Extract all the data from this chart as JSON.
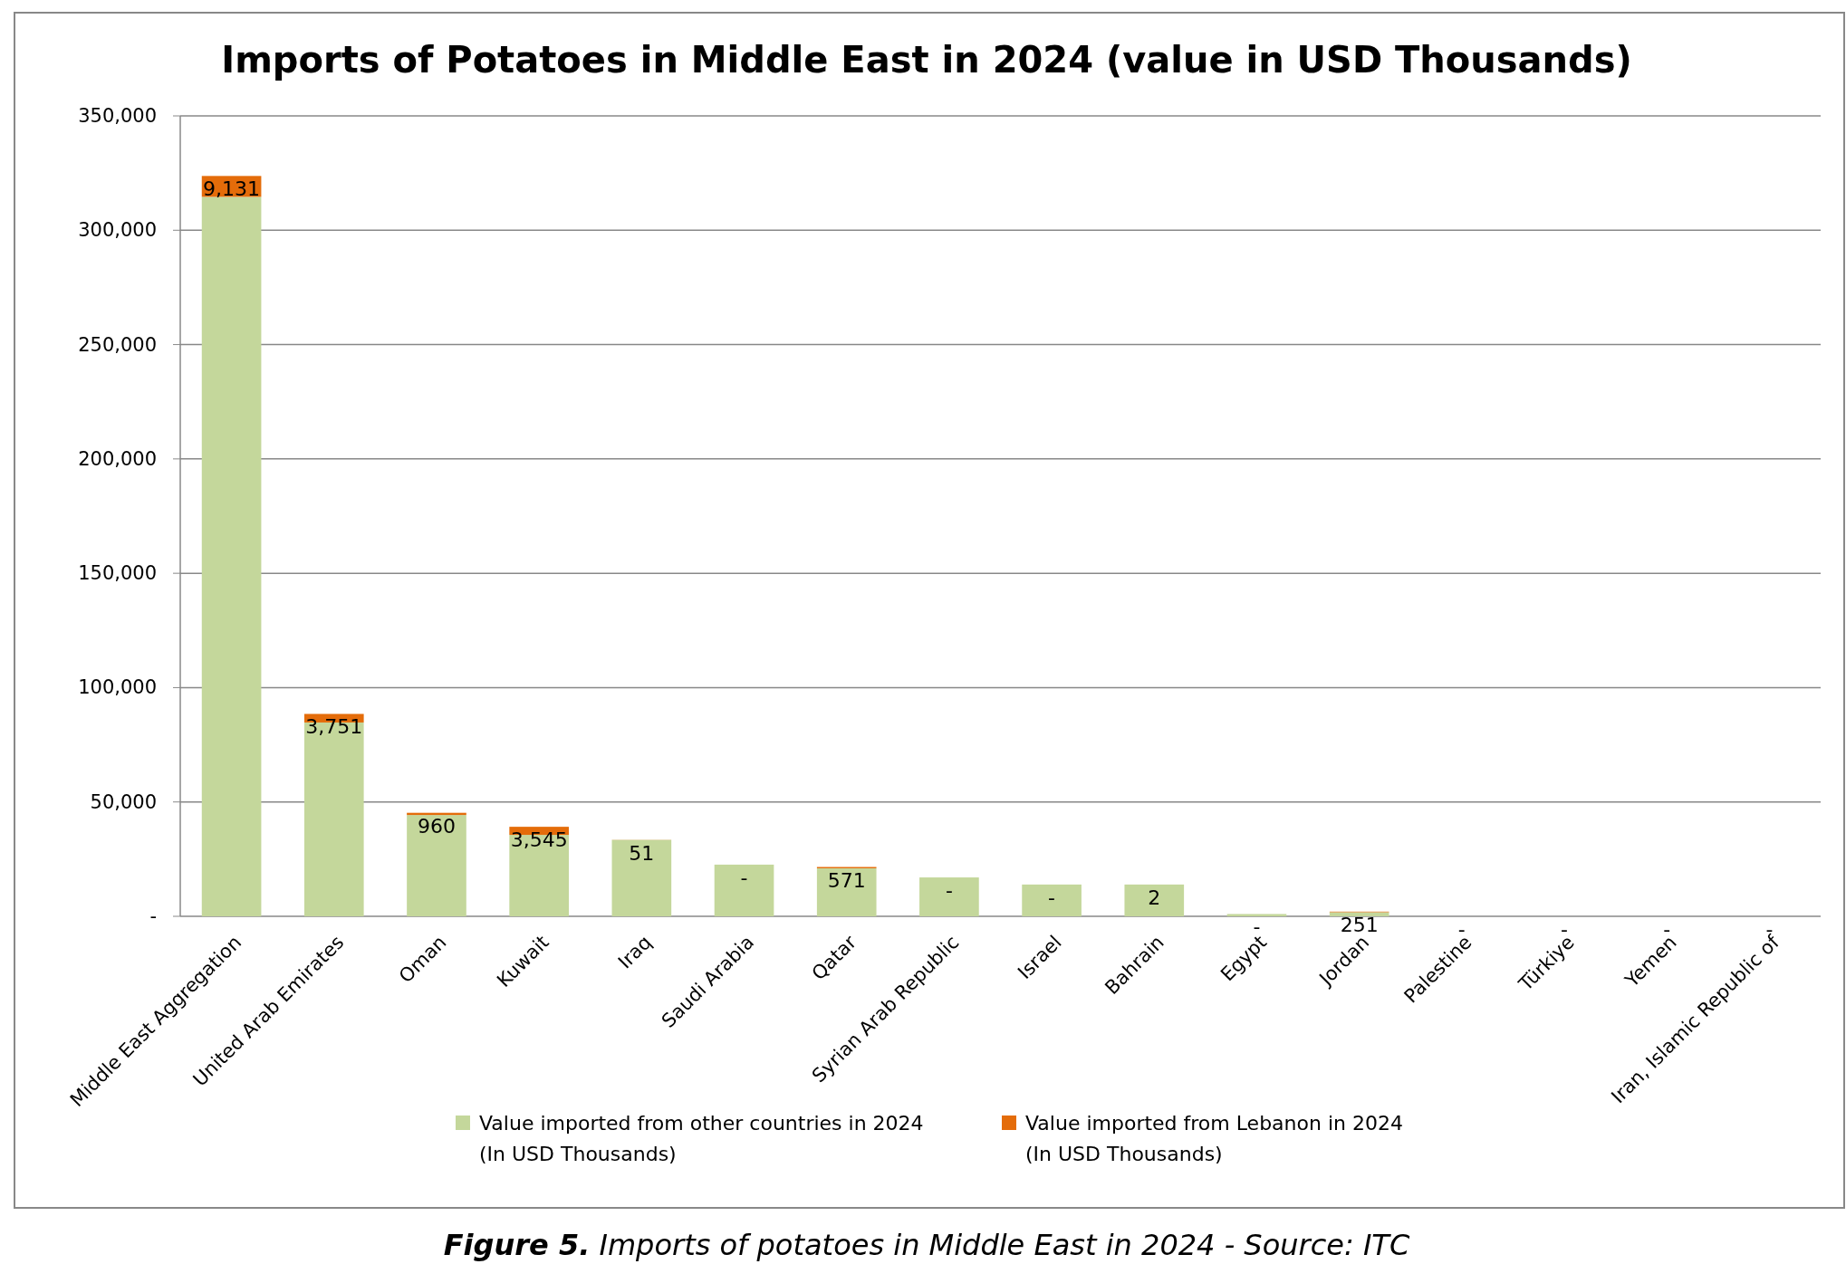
{
  "chart_data": {
    "type": "bar",
    "stacked": true,
    "title": "Imports of Potatoes in Middle East in 2024 (value in USD Thousands)",
    "categories": [
      "Middle East Aggregation",
      "United Arab Emirates",
      "Oman",
      "Kuwait",
      "Iraq",
      "Saudi Arabia",
      "Qatar",
      "Syrian Arab Republic",
      "Israel",
      "Bahrain",
      "Egypt",
      "Jordan",
      "Palestine",
      "Türkiye",
      "Yemen",
      "Iran, Islamic Republic of"
    ],
    "series": [
      {
        "name": "Value imported from other countries in 2024\n(In USD Thousands)",
        "color": "#c4d79b",
        "values": [
          314600,
          84750,
          44300,
          35600,
          33400,
          22600,
          21000,
          17000,
          13900,
          13900,
          1000,
          1800,
          0,
          0,
          0,
          0
        ]
      },
      {
        "name": "Value imported from Lebanon in 2024\n(In USD Thousands)",
        "color": "#e46c0a",
        "values": [
          9131,
          3751,
          960,
          3545,
          51,
          0,
          571,
          0,
          0,
          2,
          0,
          251,
          0,
          0,
          0,
          0
        ],
        "value_labels": [
          "9,131",
          "3,751",
          "960",
          "3,545",
          "51",
          "-",
          "571",
          "-",
          "-",
          "2",
          "-",
          "251",
          "-",
          "-",
          "-",
          "-"
        ]
      }
    ],
    "ylim": [
      0,
      350000
    ],
    "yticks": [
      {
        "value": 0,
        "label": "-"
      },
      {
        "value": 50000,
        "label": "50,000"
      },
      {
        "value": 100000,
        "label": "100,000"
      },
      {
        "value": 150000,
        "label": "150,000"
      },
      {
        "value": 200000,
        "label": "200,000"
      },
      {
        "value": 250000,
        "label": "250,000"
      },
      {
        "value": 300000,
        "label": "300,000"
      },
      {
        "value": 350000,
        "label": "350,000"
      }
    ],
    "grid": "y",
    "legend": "bottom",
    "annotations": [
      "Figure 5. Imports of potatoes in Middle East in 2024 - Source: ITC"
    ]
  }
}
